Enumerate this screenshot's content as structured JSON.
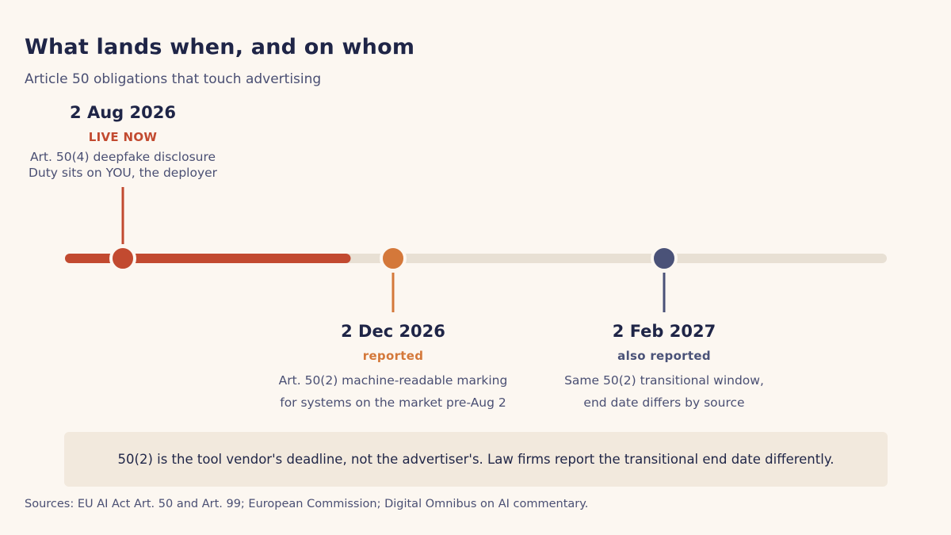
{
  "header": {
    "title": "What lands when, and on whom",
    "subtitle": "Article 50 obligations that touch advertising"
  },
  "milestones": [
    {
      "date": "2 Aug 2026",
      "status": "LIVE NOW",
      "lines": [
        "Art. 50(4) deepfake disclosure",
        "Duty sits on YOU, the deployer"
      ],
      "color": "#c24a30"
    },
    {
      "date": "2 Dec 2026",
      "status": "reported",
      "lines": [
        "Art. 50(2) machine-readable marking",
        "for systems on the market pre-Aug 2"
      ],
      "color": "#d4783a"
    },
    {
      "date": "2 Feb 2027",
      "status": "also reported",
      "lines": [
        "Same 50(2) transitional window,",
        "end date differs by source"
      ],
      "color": "#4a5278"
    }
  ],
  "timeline": {
    "progress": 0.34,
    "track_color": "#e8e0d4",
    "progress_color": "#c24a30"
  },
  "callout": {
    "text": "50(2) is the tool vendor's deadline, not the advertiser's. Law firms report the transitional end date differently."
  },
  "footer": {
    "sources": "Sources: EU AI Act Art. 50 and Art. 99; European Commission; Digital Omnibus on AI commentary."
  }
}
